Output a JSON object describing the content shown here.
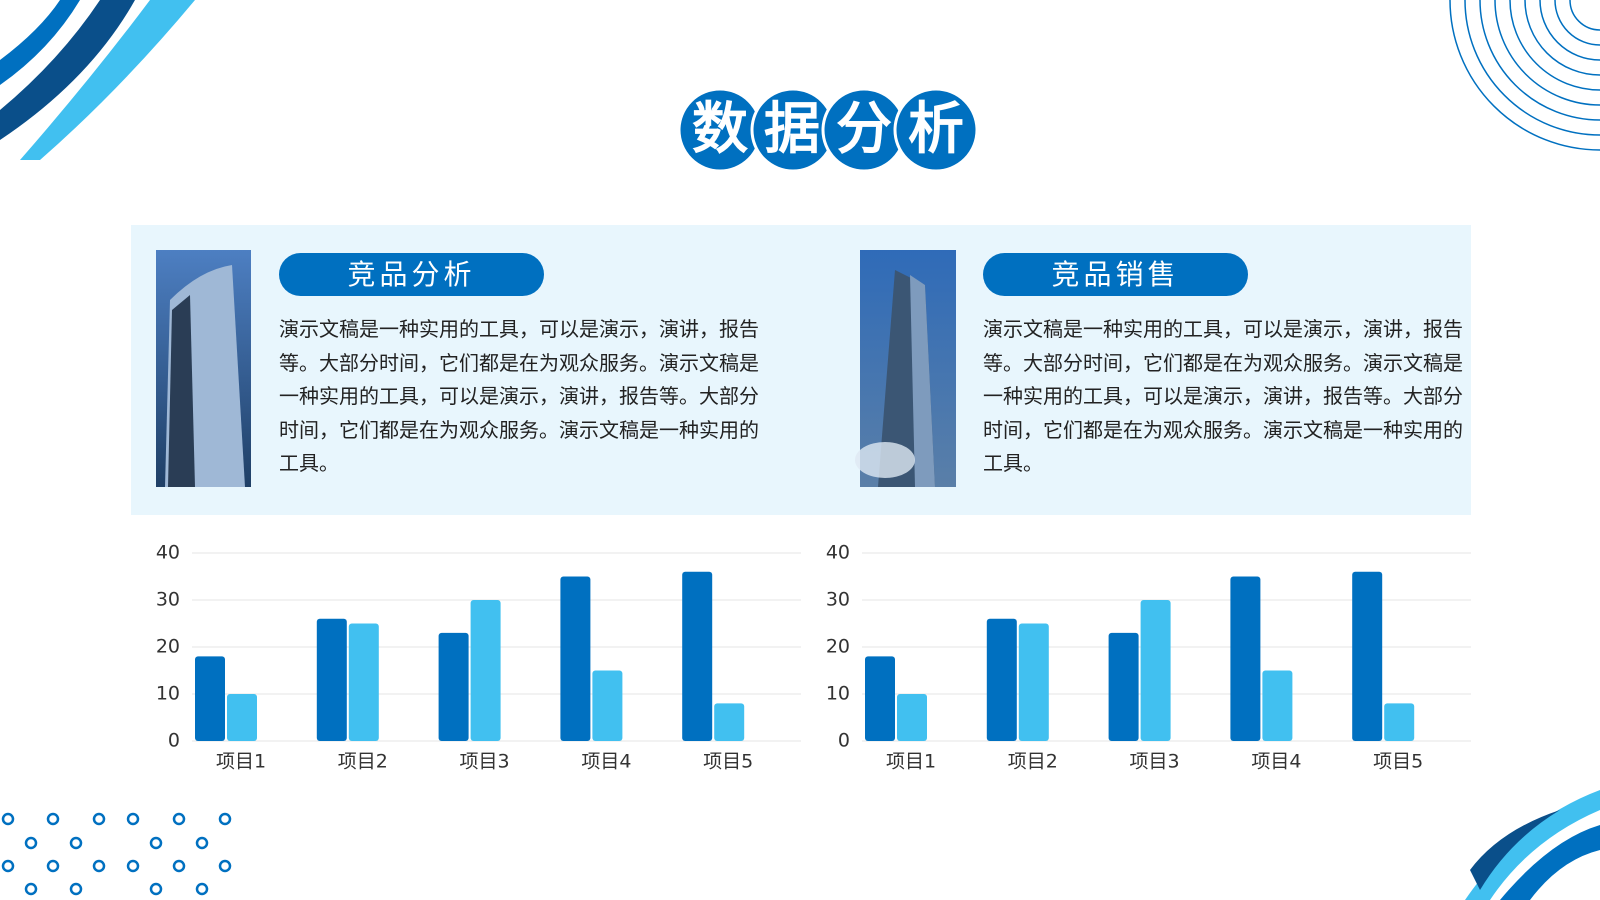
{
  "header": {
    "title": "数据分析"
  },
  "panels": [
    {
      "title": "竞品分析",
      "text": "演示文稿是一种实用的工具，可以是演示，演讲，报告等。大部分时间，它们都是在为观众服务。演示文稿是一种实用的工具，可以是演示，演讲，报告等。大部分时间，它们都是在为观众服务。演示文稿是一种实用的工具。"
    },
    {
      "title": "竞品销售",
      "text": "演示文稿是一种实用的工具，可以是演示，演讲，报告等。大部分时间，它们都是在为观众服务。演示文稿是一种实用的工具，可以是演示，演讲，报告等。大部分时间，它们都是在为观众服务。演示文稿是一种实用的工具。"
    }
  ],
  "chart_data": [
    {
      "type": "bar",
      "categories": [
        "项目1",
        "项目2",
        "项目3",
        "项目4",
        "项目5"
      ],
      "series": [
        {
          "color": "#0070c0",
          "values": [
            18,
            26,
            23,
            35,
            36
          ]
        },
        {
          "color": "#41c0f0",
          "values": [
            10,
            25,
            30,
            15,
            8
          ]
        }
      ],
      "ylim": [
        0,
        40
      ],
      "yticks": [
        0,
        10,
        20,
        30,
        40
      ],
      "grid": true
    },
    {
      "type": "bar",
      "categories": [
        "项目1",
        "项目2",
        "项目3",
        "项目4",
        "项目5"
      ],
      "series": [
        {
          "color": "#0070c0",
          "values": [
            18,
            26,
            23,
            35,
            36
          ]
        },
        {
          "color": "#41c0f0",
          "values": [
            10,
            25,
            30,
            15,
            8
          ]
        }
      ],
      "ylim": [
        0,
        40
      ],
      "yticks": [
        0,
        10,
        20,
        30,
        40
      ],
      "grid": true
    }
  ]
}
